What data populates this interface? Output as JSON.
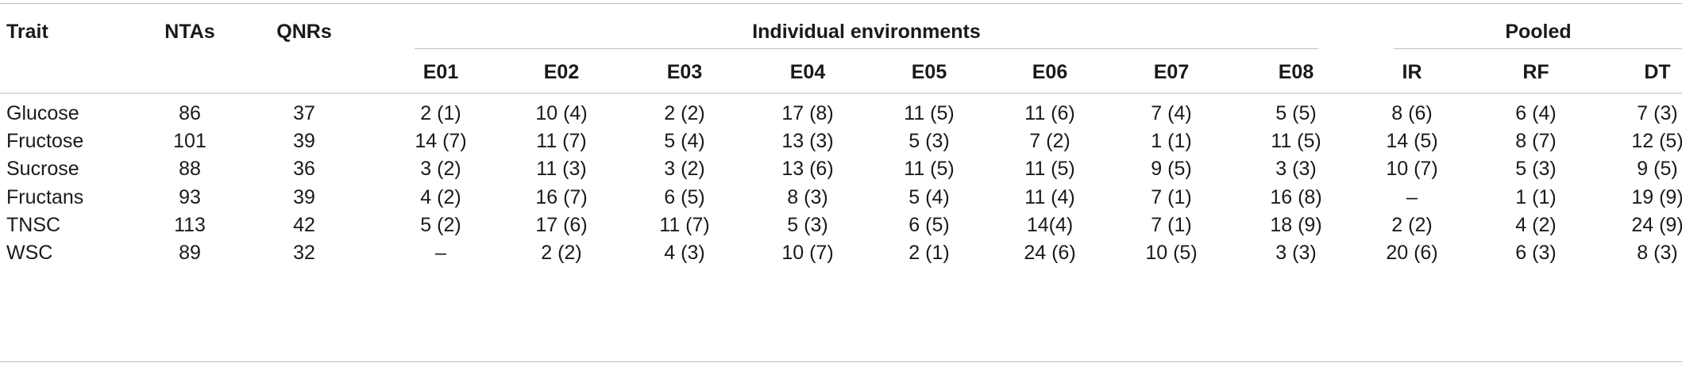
{
  "headers": {
    "trait": "Trait",
    "ntas": "NTAs",
    "qnrs": "QNRs",
    "individual": "Individual environments",
    "pooled": "Pooled",
    "envs": [
      "E01",
      "E02",
      "E03",
      "E04",
      "E05",
      "E06",
      "E07",
      "E08"
    ],
    "pooled_cols": [
      "IR",
      "RF",
      "DT"
    ]
  },
  "rows": [
    {
      "trait": "Glucose",
      "ntas": "86",
      "qnrs": "37",
      "env": [
        "2 (1)",
        "10 (4)",
        "2 (2)",
        "17 (8)",
        "11 (5)",
        "11 (6)",
        "7 (4)",
        "5 (5)"
      ],
      "pooled": [
        "8 (6)",
        "6 (4)",
        "7 (3)"
      ]
    },
    {
      "trait": "Fructose",
      "ntas": "101",
      "qnrs": "39",
      "env": [
        "14 (7)",
        "11 (7)",
        "5 (4)",
        "13 (3)",
        "5 (3)",
        "7 (2)",
        "1 (1)",
        "11 (5)"
      ],
      "pooled": [
        "14 (5)",
        "8 (7)",
        "12 (5)"
      ]
    },
    {
      "trait": "Sucrose",
      "ntas": "88",
      "qnrs": "36",
      "env": [
        "3 (2)",
        "11 (3)",
        "3 (2)",
        "13 (6)",
        "11 (5)",
        "11 (5)",
        "9 (5)",
        "3 (3)"
      ],
      "pooled": [
        "10 (7)",
        "5 (3)",
        "9 (5)"
      ]
    },
    {
      "trait": "Fructans",
      "ntas": "93",
      "qnrs": "39",
      "env": [
        "4 (2)",
        "16 (7)",
        "6 (5)",
        "8 (3)",
        "5 (4)",
        "11 (4)",
        "7 (1)",
        "16 (8)"
      ],
      "pooled": [
        "–",
        "1 (1)",
        "19 (9)"
      ]
    },
    {
      "trait": "TNSC",
      "ntas": "113",
      "qnrs": "42",
      "env": [
        "5 (2)",
        "17 (6)",
        "11 (7)",
        "5 (3)",
        "6 (5)",
        "14(4)",
        "7 (1)",
        "18 (9)"
      ],
      "pooled": [
        "2 (2)",
        "4 (2)",
        "24 (9)"
      ]
    },
    {
      "trait": "WSC",
      "ntas": "89",
      "qnrs": "32",
      "env": [
        "–",
        "2 (2)",
        "4 (3)",
        "10 (7)",
        "2 (1)",
        "24 (6)",
        "10 (5)",
        "3 (3)"
      ],
      "pooled": [
        "20 (6)",
        "6 (3)",
        "8 (3)"
      ]
    }
  ]
}
